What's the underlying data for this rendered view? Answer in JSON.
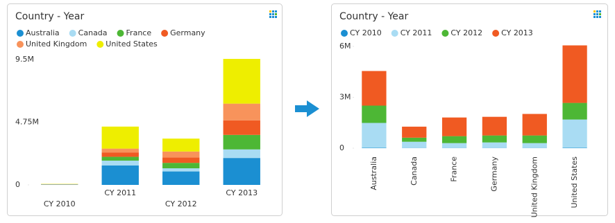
{
  "chart_data": [
    {
      "type": "stacked-bar",
      "title": "Country - Year",
      "categories": [
        "CY 2010",
        "CY 2011",
        "CY 2012",
        "CY 2013"
      ],
      "series": [
        {
          "name": "Australia",
          "color": "#1b8fd2",
          "values": [
            20000,
            1470000,
            1020000,
            2040000
          ]
        },
        {
          "name": "Canada",
          "color": "#a9dcf3",
          "values": [
            10000,
            370000,
            240000,
            650000
          ]
        },
        {
          "name": "France",
          "color": "#4db735",
          "values": [
            10000,
            290000,
            410000,
            1100000
          ]
        },
        {
          "name": "Germany",
          "color": "#f05a22",
          "values": [
            10000,
            330000,
            410000,
            1100000
          ]
        },
        {
          "name": "United Kingdom",
          "color": "#f8935b",
          "values": [
            10000,
            290000,
            450000,
            1270000
          ]
        },
        {
          "name": "United States",
          "color": "#eeee00",
          "values": [
            20000,
            1670000,
            980000,
            3390000
          ]
        }
      ],
      "ylim": [
        0,
        9500000
      ],
      "yticks": [
        0,
        {
          "value": 4750000,
          "label": "4.75M"
        },
        {
          "value": 9500000,
          "label": "9.5M"
        }
      ]
    },
    {
      "type": "stacked-bar",
      "title": "Country - Year",
      "categories": [
        "Australia",
        "Canada",
        "France",
        "Germany",
        "United Kingdom",
        "United States"
      ],
      "series": [
        {
          "name": "CY 2010",
          "color": "#1b8fd2",
          "values": [
            20000,
            10000,
            10000,
            10000,
            10000,
            20000
          ]
        },
        {
          "name": "CY 2011",
          "color": "#a9dcf3",
          "values": [
            1470000,
            370000,
            290000,
            330000,
            290000,
            1670000
          ]
        },
        {
          "name": "CY 2012",
          "color": "#4db735",
          "values": [
            1020000,
            240000,
            410000,
            410000,
            450000,
            980000
          ]
        },
        {
          "name": "CY 2013",
          "color": "#f05a22",
          "values": [
            2040000,
            650000,
            1100000,
            1100000,
            1270000,
            3390000
          ]
        }
      ],
      "ylim": [
        0,
        6000000
      ],
      "yticks": [
        0,
        {
          "value": 3000000,
          "label": "3M"
        },
        {
          "value": 6000000,
          "label": "6M"
        }
      ]
    }
  ]
}
